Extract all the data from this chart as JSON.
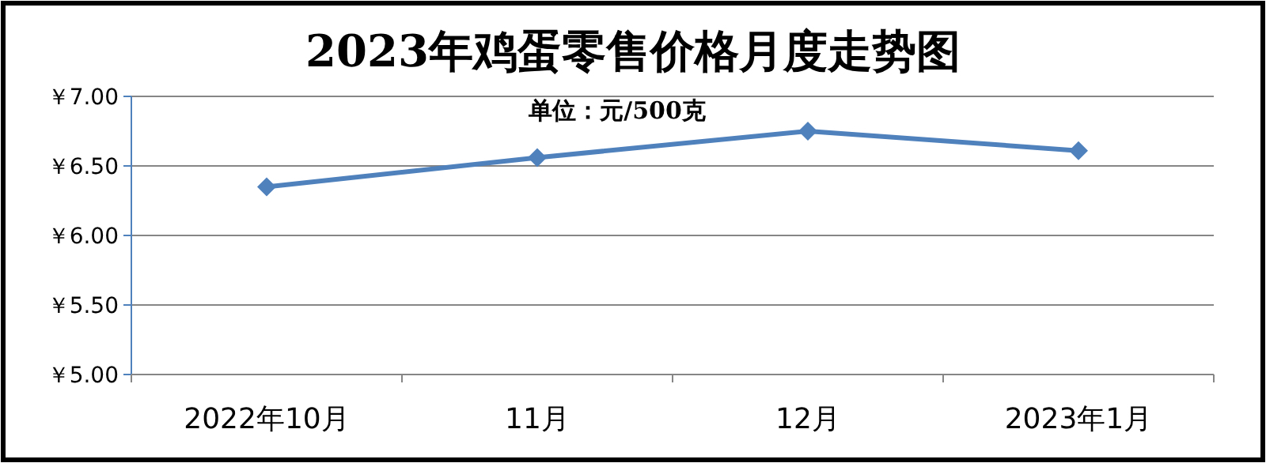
{
  "chart_data": {
    "type": "line",
    "title": "2023年鸡蛋零售价格月度走势图",
    "subtitle": "单位：元/500克",
    "categories": [
      "2022年10月",
      "11月",
      "12月",
      "2023年1月"
    ],
    "series": [
      {
        "color": "#4f81bd",
        "values": [
          6.35,
          6.56,
          6.75,
          6.61
        ]
      }
    ],
    "ylim": [
      5,
      7
    ],
    "yticks": [
      {
        "value": 5,
        "label": "￥5.00"
      },
      {
        "value": 5.5,
        "label": "￥5.50"
      },
      {
        "value": 6,
        "label": "￥6.00"
      },
      {
        "value": 6.5,
        "label": "￥6.50"
      },
      {
        "value": 7,
        "label": "￥7.00"
      }
    ],
    "grid": "y",
    "marker": "diamond",
    "line_style": "solid"
  }
}
